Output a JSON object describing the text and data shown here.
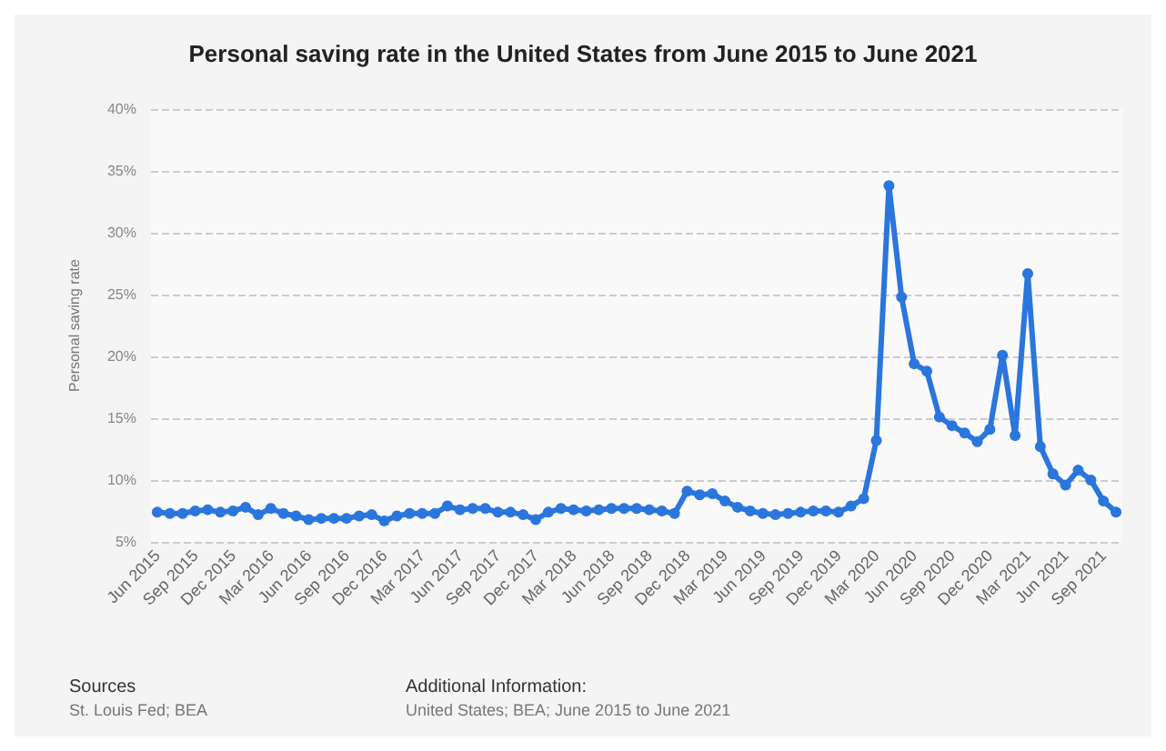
{
  "chart_data": {
    "type": "line",
    "title": "Personal saving rate in the United States from June 2015 to June 2021",
    "ylabel": "Personal saving rate",
    "categories": [
      "Jun 2015",
      null,
      null,
      "Sep 2015",
      null,
      null,
      "Dec 2015",
      null,
      null,
      "Mar 2016",
      null,
      null,
      "Jun 2016",
      null,
      null,
      "Sep 2016",
      null,
      null,
      "Dec 2016",
      null,
      null,
      "Mar 2017",
      null,
      null,
      "Jun 2017",
      null,
      null,
      "Sep 2017",
      null,
      null,
      "Dec 2017",
      null,
      null,
      "Mar 2018",
      null,
      null,
      "Jun 2018",
      null,
      null,
      "Sep 2018",
      null,
      null,
      "Dec 2018",
      null,
      null,
      "Mar 2019",
      null,
      null,
      "Jun 2019",
      null,
      null,
      "Sep 2019",
      null,
      null,
      "Dec 2019",
      null,
      null,
      "Mar 2020",
      null,
      null,
      "Jun 2020",
      null,
      null,
      "Sep 2020",
      null,
      null,
      "Dec 2020",
      null,
      null,
      "Mar 2021",
      null,
      null,
      "Jun 2021",
      null,
      null,
      "Sep 2021",
      null
    ],
    "series": [
      {
        "color": "#2a76dd",
        "values": [
          7.4,
          7.3,
          7.3,
          7.5,
          7.6,
          7.4,
          7.5,
          7.8,
          7.2,
          7.7,
          7.3,
          7.1,
          6.8,
          6.9,
          6.9,
          6.9,
          7.1,
          7.2,
          6.7,
          7.1,
          7.3,
          7.3,
          7.3,
          7.9,
          7.6,
          7.7,
          7.7,
          7.4,
          7.4,
          7.2,
          6.8,
          7.4,
          7.7,
          7.6,
          7.5,
          7.6,
          7.7,
          7.7,
          7.7,
          7.6,
          7.5,
          7.3,
          9.1,
          8.8,
          8.9,
          8.3,
          7.8,
          7.5,
          7.3,
          7.2,
          7.3,
          7.4,
          7.5,
          7.5,
          7.4,
          7.9,
          8.5,
          13.2,
          33.8,
          24.8,
          19.4,
          18.8,
          15.1,
          14.4,
          13.8,
          13.1,
          14.1,
          20.1,
          13.6,
          26.7,
          12.7,
          10.5,
          9.6,
          10.8,
          10.0,
          8.3,
          7.4
        ]
      }
    ],
    "ylim": [
      5,
      40
    ],
    "yticks": [
      {
        "value": 5,
        "label": "5%"
      },
      {
        "value": 10,
        "label": "10%"
      },
      {
        "value": 15,
        "label": "15%"
      },
      {
        "value": 20,
        "label": "20%"
      },
      {
        "value": 25,
        "label": "25%"
      },
      {
        "value": 30,
        "label": "30%"
      },
      {
        "value": 35,
        "label": "35%"
      },
      {
        "value": 40,
        "label": "40%"
      }
    ],
    "grid": "y",
    "marker": "circle",
    "line_style": "solid",
    "annotations": [
      "Sources",
      "St. Louis Fed; BEA",
      "Additional Information:",
      "United States; BEA; June 2015 to June 2021"
    ]
  }
}
